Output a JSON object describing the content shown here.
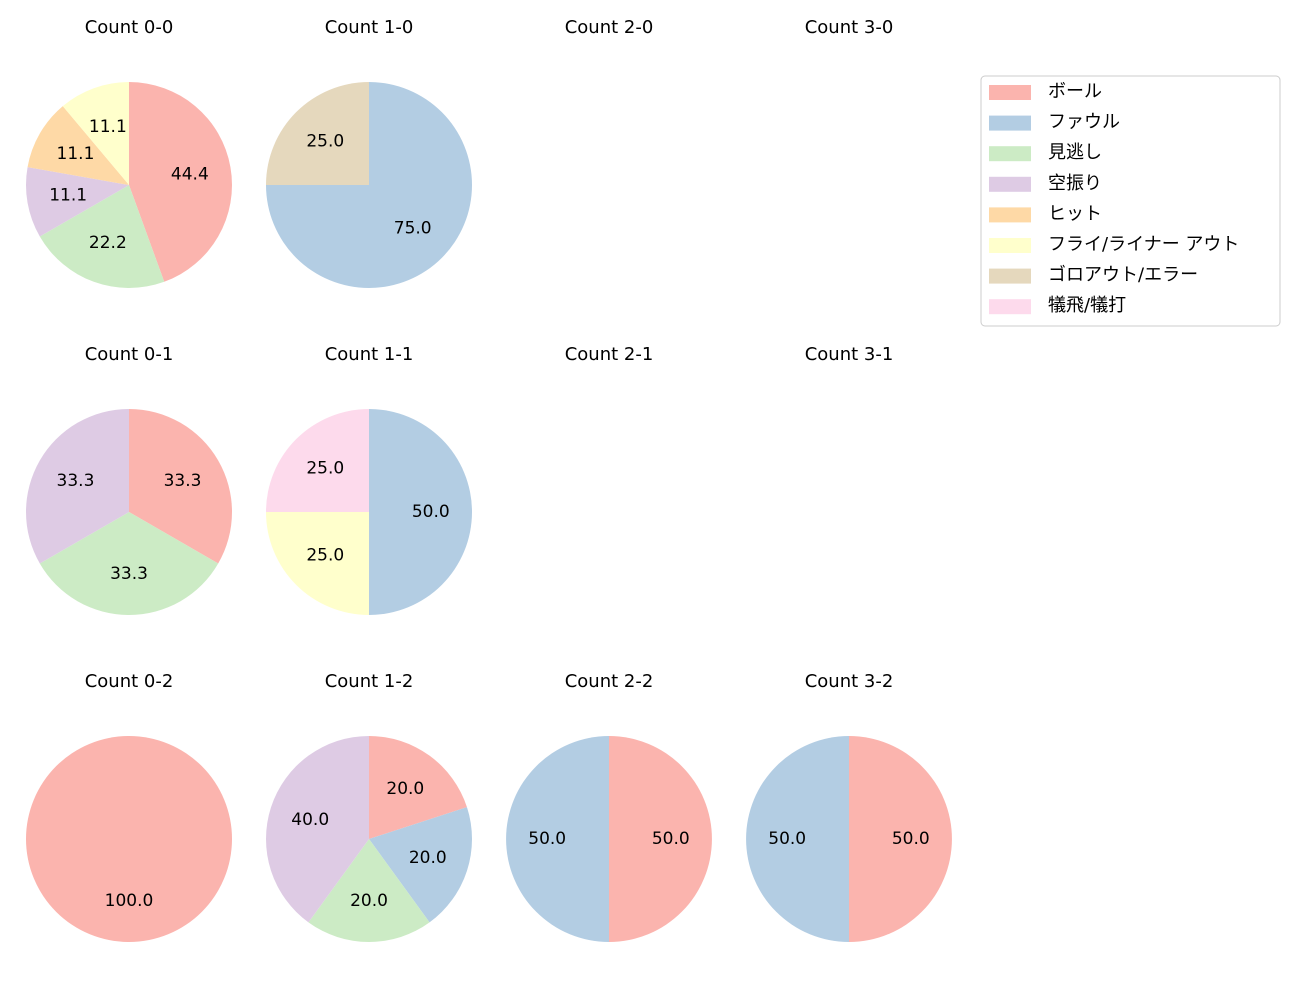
{
  "chart_data": [
    {
      "type": "pie",
      "title": "Count 0-0",
      "categories": [
        "ボール",
        "見逃し",
        "空振り",
        "ヒット",
        "フライ/ライナー アウト"
      ],
      "values": [
        44.4,
        22.2,
        11.1,
        11.1,
        11.1
      ],
      "value_labels": [
        "44.4",
        "22.2",
        "11.1",
        "11.1",
        "11.1"
      ],
      "colors": [
        "#fbb4ae",
        "#ccebc5",
        "#decbe4",
        "#fed9a6",
        "#ffffcc"
      ]
    },
    {
      "type": "pie",
      "title": "Count 1-0",
      "categories": [
        "ファウル",
        "ゴロアウト/エラー"
      ],
      "values": [
        75,
        25
      ],
      "value_labels": [
        "75.0",
        "25.0"
      ],
      "colors": [
        "#b3cde3",
        "#e5d8bd"
      ]
    },
    {
      "type": "pie",
      "title": "Count 2-0"
    },
    {
      "type": "pie",
      "title": "Count 3-0"
    },
    {
      "type": "pie",
      "title": "Count 0-1",
      "categories": [
        "ボール",
        "見逃し",
        "空振り"
      ],
      "values": [
        33.3,
        33.3,
        33.3
      ],
      "value_labels": [
        "33.3",
        "33.3",
        "33.3"
      ],
      "colors": [
        "#fbb4ae",
        "#ccebc5",
        "#decbe4"
      ]
    },
    {
      "type": "pie",
      "title": "Count 1-1",
      "categories": [
        "ファウル",
        "フライ/ライナー アウト",
        "犠飛/犠打"
      ],
      "values": [
        50,
        25,
        25
      ],
      "value_labels": [
        "50.0",
        "25.0",
        "25.0"
      ],
      "colors": [
        "#b3cde3",
        "#ffffcc",
        "#fddaec"
      ]
    },
    {
      "type": "pie",
      "title": "Count 2-1"
    },
    {
      "type": "pie",
      "title": "Count 3-1"
    },
    {
      "type": "pie",
      "title": "Count 0-2",
      "categories": [
        "ボール"
      ],
      "values": [
        100
      ],
      "value_labels": [
        "100.0"
      ],
      "colors": [
        "#fbb4ae"
      ]
    },
    {
      "type": "pie",
      "title": "Count 1-2",
      "categories": [
        "ボール",
        "ファウル",
        "見逃し",
        "空振り"
      ],
      "values": [
        20,
        20,
        20,
        40
      ],
      "value_labels": [
        "20.0",
        "20.0",
        "20.0",
        "40.0"
      ],
      "colors": [
        "#fbb4ae",
        "#b3cde3",
        "#ccebc5",
        "#decbe4"
      ]
    },
    {
      "type": "pie",
      "title": "Count 2-2",
      "categories": [
        "ボール",
        "ファウル"
      ],
      "values": [
        50,
        50
      ],
      "value_labels": [
        "50.0",
        "50.0"
      ],
      "colors": [
        "#fbb4ae",
        "#b3cde3"
      ]
    },
    {
      "type": "pie",
      "title": "Count 3-2",
      "categories": [
        "ボール",
        "ファウル"
      ],
      "values": [
        50,
        50
      ],
      "value_labels": [
        "50.0",
        "50.0"
      ],
      "colors": [
        "#fbb4ae",
        "#b3cde3"
      ]
    }
  ],
  "legend": [
    {
      "name": "ボール",
      "color": "#fbb4ae"
    },
    {
      "name": "ファウル",
      "color": "#b3cde3"
    },
    {
      "name": "見逃し",
      "color": "#ccebc5"
    },
    {
      "name": "空振り",
      "color": "#decbe4"
    },
    {
      "name": "ヒット",
      "color": "#fed9a6"
    },
    {
      "name": "フライ/ライナー アウト",
      "color": "#ffffcc"
    },
    {
      "name": "ゴロアウト/エラー",
      "color": "#e5d8bd"
    },
    {
      "name": "犠飛/犠打",
      "color": "#fddaec"
    }
  ]
}
